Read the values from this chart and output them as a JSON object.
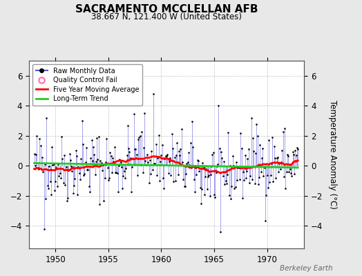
{
  "title": "SACRAMENTO MCCLELLAN AFB",
  "subtitle": "38.667 N, 121.400 W (United States)",
  "ylabel": "Temperature Anomaly (°C)",
  "watermark": "Berkeley Earth",
  "xlim": [
    1947.5,
    1973.5
  ],
  "ylim": [
    -5.5,
    7.0
  ],
  "yticks": [
    -4,
    -2,
    0,
    2,
    4,
    6
  ],
  "xticks": [
    1950,
    1955,
    1960,
    1965,
    1970
  ],
  "bg_color": "#e8e8e8",
  "plot_bg_color": "#ffffff",
  "raw_line_color": "#5555dd",
  "raw_dot_color": "#000000",
  "moving_avg_color": "#ff0000",
  "trend_color": "#22cc22",
  "qc_color": "#ff69b4",
  "seed": 42,
  "start_year": 1948.0,
  "end_year": 1972.917,
  "n_months": 300
}
